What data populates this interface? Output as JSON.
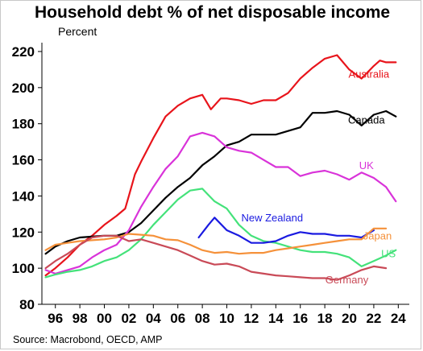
{
  "chart_data": {
    "type": "line",
    "title": "Household debt % of net disposable income",
    "ylabel": "Percent",
    "source": "Source: Macrobond, OECD, AMP",
    "xlim": [
      1994.9,
      2024.9
    ],
    "ylim": [
      80,
      224
    ],
    "x_ticks": [
      1996,
      1998,
      2000,
      2002,
      2004,
      2006,
      2008,
      2010,
      2012,
      2014,
      2016,
      2018,
      2020,
      2022,
      2024
    ],
    "x_tick_labels": [
      "96",
      "98",
      "00",
      "02",
      "04",
      "06",
      "08",
      "10",
      "12",
      "14",
      "16",
      "18",
      "20",
      "22",
      "24"
    ],
    "y_ticks": [
      80,
      100,
      120,
      140,
      160,
      180,
      200,
      220
    ],
    "grid": false,
    "series": [
      {
        "name": "Australia",
        "color": "#e8141b",
        "x": [
          1995.2,
          1996,
          1997,
          1998,
          1999,
          2000,
          2001,
          2001.7,
          2002,
          2002.5,
          2003,
          2004,
          2005,
          2006,
          2007,
          2008,
          2008.7,
          2009.5,
          2010,
          2011,
          2012,
          2013,
          2014,
          2015,
          2016,
          2017,
          2018,
          2019,
          2020,
          2021,
          2022,
          2022.5,
          2023,
          2023.8
        ],
        "y": [
          96,
          100,
          106,
          113,
          118,
          124,
          129,
          133,
          140,
          152,
          159,
          172,
          184,
          190,
          194,
          196,
          188,
          194,
          194,
          193,
          191,
          193,
          193,
          197,
          205,
          211,
          216,
          218,
          210,
          205,
          212,
          215,
          214,
          214
        ]
      },
      {
        "name": "Canada",
        "color": "#000000",
        "x": [
          1995.2,
          1996,
          1997,
          1998,
          1999,
          2000,
          2001,
          2002,
          2003,
          2004,
          2005,
          2006,
          2007,
          2008,
          2009,
          2010,
          2011,
          2012,
          2013,
          2014,
          2015,
          2016,
          2017,
          2018,
          2019,
          2020,
          2021,
          2022,
          2023,
          2023.8
        ],
        "y": [
          108,
          112,
          115,
          117,
          117.5,
          118,
          118,
          120,
          125,
          132,
          139,
          145,
          150,
          157,
          162,
          168,
          170,
          174,
          174,
          174,
          176,
          178,
          186,
          186,
          187,
          185,
          179,
          185,
          187,
          184
        ]
      },
      {
        "name": "UK",
        "color": "#d933d9",
        "x": [
          1995.2,
          1996,
          1997,
          1998,
          1999,
          2000,
          2001,
          2002,
          2003,
          2004,
          2005,
          2006,
          2007,
          2008,
          2009,
          2010,
          2011,
          2012,
          2013,
          2014,
          2015,
          2016,
          2017,
          2018,
          2019,
          2020,
          2021,
          2022,
          2023,
          2023.8
        ],
        "y": [
          99,
          97,
          99,
          101,
          106,
          110,
          113,
          121,
          134,
          145,
          155,
          162,
          173,
          175,
          173,
          167,
          165,
          164,
          160,
          156,
          156,
          151,
          153,
          154,
          152,
          149,
          153,
          150,
          145,
          137
        ]
      },
      {
        "name": "US",
        "color": "#44e27a",
        "x": [
          1995.2,
          1996,
          1997,
          1998,
          1999,
          2000,
          2001,
          2002,
          2003,
          2004,
          2005,
          2006,
          2007,
          2008,
          2009,
          2010,
          2011,
          2012,
          2013,
          2014,
          2015,
          2016,
          2017,
          2018,
          2019,
          2020,
          2021,
          2022,
          2023,
          2023.8
        ],
        "y": [
          95,
          96.5,
          98,
          99,
          101,
          104,
          106,
          110,
          116,
          124,
          131,
          138,
          143,
          144,
          137,
          133,
          124,
          118,
          115,
          114,
          112,
          110,
          109,
          109,
          108,
          106,
          101,
          104,
          107,
          110
        ]
      },
      {
        "name": "New Zealand",
        "color": "#1a1ae0",
        "x": [
          2007.7,
          2008.5,
          2009,
          2010,
          2011,
          2012,
          2013,
          2014,
          2015,
          2016,
          2017,
          2018,
          2019,
          2020,
          2021,
          2022
        ],
        "y": [
          117,
          124,
          128,
          121,
          118,
          114,
          114,
          115,
          118,
          120,
          119,
          119,
          118,
          118,
          117,
          121
        ]
      },
      {
        "name": "Japan",
        "color": "#f5913a",
        "x": [
          1995.2,
          1996,
          1997,
          1998,
          1999,
          2000,
          2001,
          2002,
          2003,
          2004,
          2005,
          2006,
          2007,
          2008,
          2009,
          2010,
          2011,
          2012,
          2013,
          2014,
          2015,
          2016,
          2017,
          2018,
          2019,
          2020,
          2021,
          2022,
          2023
        ],
        "y": [
          110,
          113,
          114,
          115,
          115.5,
          116,
          117,
          119,
          118.5,
          118,
          116,
          115.5,
          113,
          110,
          108.5,
          109,
          108,
          108.5,
          108.5,
          110,
          111,
          112,
          113,
          114,
          115,
          116,
          116,
          122,
          122
        ]
      },
      {
        "name": "Germany",
        "color": "#c94a57",
        "x": [
          1995.2,
          1996,
          1997,
          1998,
          1999,
          2000,
          2001,
          2002,
          2003,
          2004,
          2005,
          2006,
          2007,
          2008,
          2009,
          2010,
          2011,
          2012,
          2013,
          2014,
          2015,
          2016,
          2017,
          2018,
          2019,
          2020,
          2021,
          2022,
          2023
        ],
        "y": [
          100,
          104,
          108,
          113,
          117,
          118,
          118,
          115,
          116,
          114,
          112,
          110,
          107,
          104,
          102,
          102.5,
          101,
          98,
          97,
          96,
          95.5,
          95,
          94.5,
          94.5,
          93.5,
          96,
          99,
          101,
          100
        ]
      }
    ],
    "annotations": [
      {
        "text": "Australia",
        "series": "Australia",
        "x": 2021.6,
        "y": 205.5
      },
      {
        "text": "Canada",
        "series": "Canada",
        "x": 2021.4,
        "y": 180
      },
      {
        "text": "UK",
        "series": "UK",
        "x": 2021.4,
        "y": 155
      },
      {
        "text": "New Zealand",
        "series": "New Zealand",
        "x": 2013.7,
        "y": 126
      },
      {
        "text": "Japan",
        "series": "Japan",
        "x": 2022.3,
        "y": 116
      },
      {
        "text": "US",
        "series": "US",
        "x": 2023.2,
        "y": 106
      },
      {
        "text": "Germany",
        "series": "Germany",
        "x": 2019.8,
        "y": 91.5
      }
    ]
  }
}
